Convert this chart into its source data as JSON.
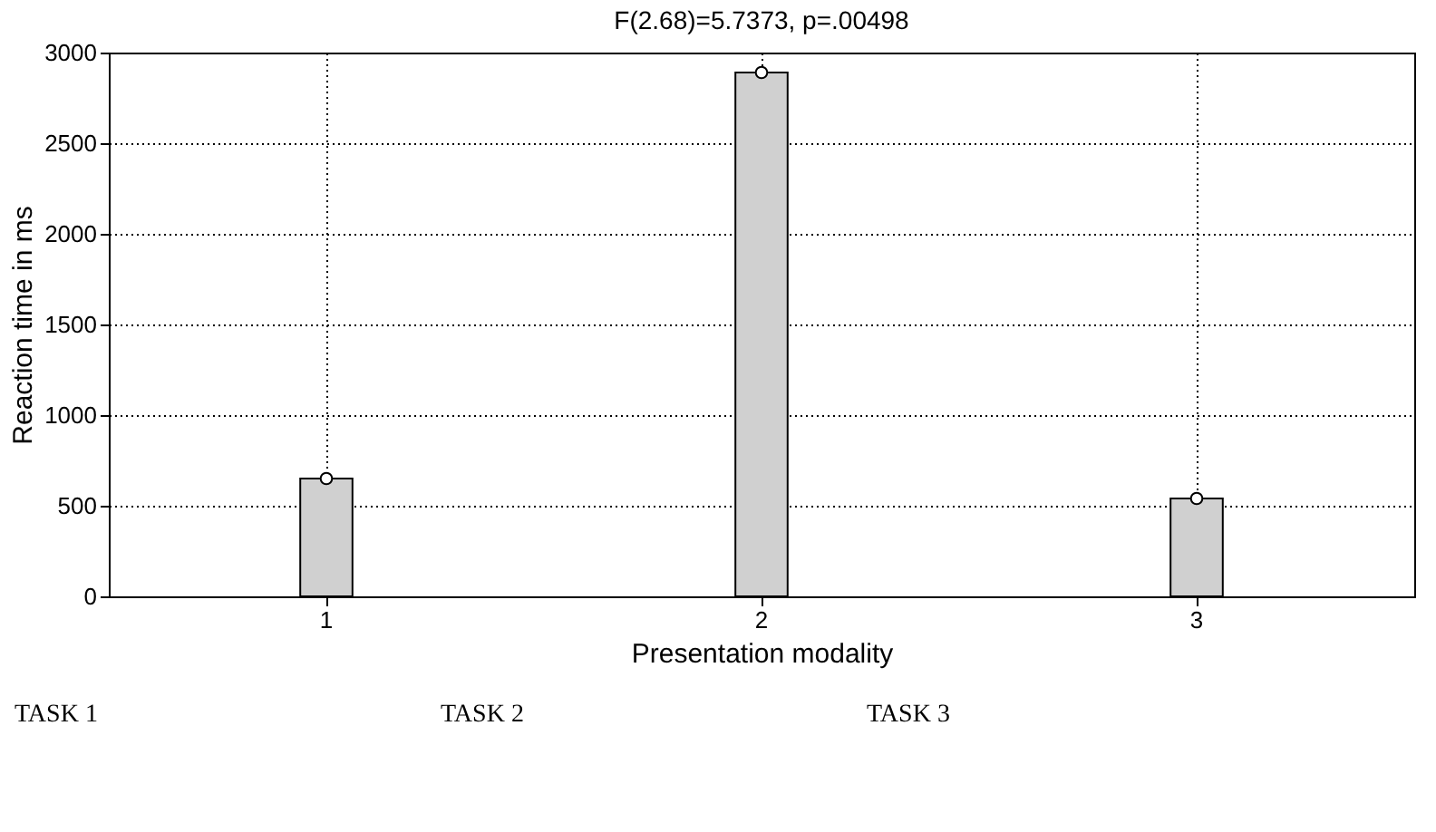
{
  "chart_data": {
    "type": "bar",
    "title": "F(2.68)=5.7373, p=.00498",
    "xlabel": "Presentation modality",
    "ylabel": "Reaction time in ms",
    "categories": [
      "1",
      "2",
      "3"
    ],
    "series": [
      {
        "color": "#d0d0d0",
        "values": [
          650,
          2890,
          540
        ]
      },
      {
        "type": "scatter",
        "color": "#ffffff",
        "x": [
          "1",
          "2",
          "3"
        ],
        "values": [
          650,
          2890,
          540
        ]
      }
    ],
    "marker": "circle",
    "ylim": [
      0,
      3000
    ],
    "yticks": [
      0,
      500,
      1000,
      1500,
      2000,
      2500,
      3000
    ],
    "grid": true,
    "annotations": [
      "TASK 1",
      "TASK 2",
      "TASK 3"
    ]
  }
}
